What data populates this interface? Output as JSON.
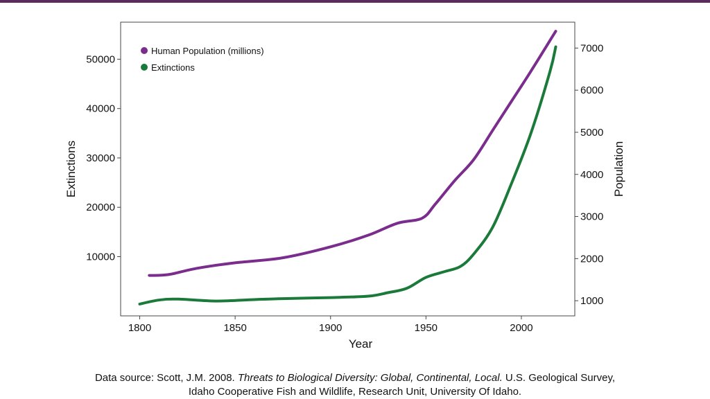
{
  "chart_data": {
    "type": "line",
    "title": "",
    "xlabel": "Year",
    "ylabel_left": "Extinctions",
    "ylabel_right": "Population",
    "xlim": [
      1790,
      2028
    ],
    "x_ticks": [
      1800,
      1850,
      1900,
      1950,
      2000
    ],
    "ylim_left": [
      -2000,
      57500
    ],
    "y_ticks_left": [
      10000,
      20000,
      30000,
      40000,
      50000
    ],
    "ylim_right": [
      640,
      7615
    ],
    "y_ticks_right": [
      1000,
      2000,
      3000,
      4000,
      5000,
      6000,
      7000
    ],
    "grid": false,
    "legend_position": "top-left",
    "series": [
      {
        "name": "Human Population (millions)",
        "axis": "right",
        "color": "#7b2d8e",
        "x": [
          1805,
          1815,
          1830,
          1850,
          1875,
          1900,
          1920,
          1935,
          1948,
          1955,
          1965,
          1975,
          1985,
          1995,
          2005,
          2018
        ],
        "y": [
          1600,
          1620,
          1770,
          1900,
          2020,
          2280,
          2560,
          2840,
          2960,
          3300,
          3850,
          4350,
          5050,
          5750,
          6450,
          7400
        ]
      },
      {
        "name": "Extinctions",
        "axis": "left",
        "color": "#1b7a3a",
        "x": [
          1800,
          1810,
          1820,
          1840,
          1860,
          1875,
          1900,
          1920,
          1930,
          1940,
          1950,
          1960,
          1968,
          1975,
          1985,
          1995,
          2005,
          2015,
          2018
        ],
        "y": [
          400,
          1200,
          1400,
          1000,
          1300,
          1500,
          1700,
          2000,
          2700,
          3600,
          5800,
          7000,
          8000,
          10500,
          16000,
          25000,
          35000,
          47500,
          52500
        ]
      }
    ]
  },
  "caption": {
    "prefix": "Data source: Scott, J.M. 2008. ",
    "italic": "Threats to Biological Diversity: Global, Continental, Local.",
    "suffix": " U.S. Geological Survey,",
    "line2": "Idaho Cooperative Fish and Wildlife, Research Unit, University Of Idaho."
  }
}
